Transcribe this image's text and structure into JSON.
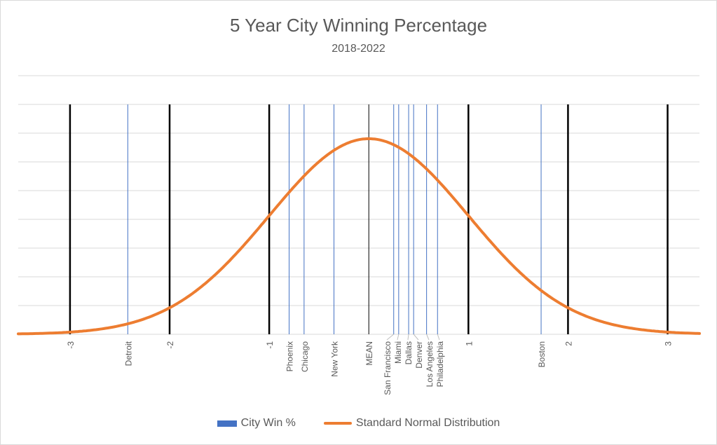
{
  "chart_data": {
    "type": "line",
    "title": "5 Year City Winning Percentage",
    "subtitle": "2018-2022",
    "xlim": [
      -3.52,
      3.32
    ],
    "ylim": [
      0,
      0.5275
    ],
    "grid": true,
    "legend_position": "bottom",
    "sd_markers": [
      {
        "label": "-3",
        "z": -3
      },
      {
        "label": "-2",
        "z": -2
      },
      {
        "label": "-1",
        "z": -1
      },
      {
        "label": "MEAN",
        "z": 0
      },
      {
        "label": "1",
        "z": 1
      },
      {
        "label": "2",
        "z": 2
      },
      {
        "label": "3",
        "z": 3
      }
    ],
    "cities": [
      {
        "label": "Detroit",
        "z": -2.42
      },
      {
        "label": "Phoenix",
        "z": -0.8
      },
      {
        "label": "Chicago",
        "z": -0.65
      },
      {
        "label": "New York",
        "z": -0.35
      },
      {
        "label": "San Francisco",
        "z": 0.25
      },
      {
        "label": "Miami",
        "z": 0.3
      },
      {
        "label": "Dallas",
        "z": 0.4
      },
      {
        "label": "Denver",
        "z": 0.45
      },
      {
        "label": "Los Angeles",
        "z": 0.58
      },
      {
        "label": "Philadelphia",
        "z": 0.69
      },
      {
        "label": "Boston",
        "z": 1.73
      }
    ],
    "series": [
      {
        "name": "City Win %",
        "color": "#4472c4"
      },
      {
        "name": "Standard Normal Distribution",
        "color": "#ed7d31"
      }
    ]
  }
}
